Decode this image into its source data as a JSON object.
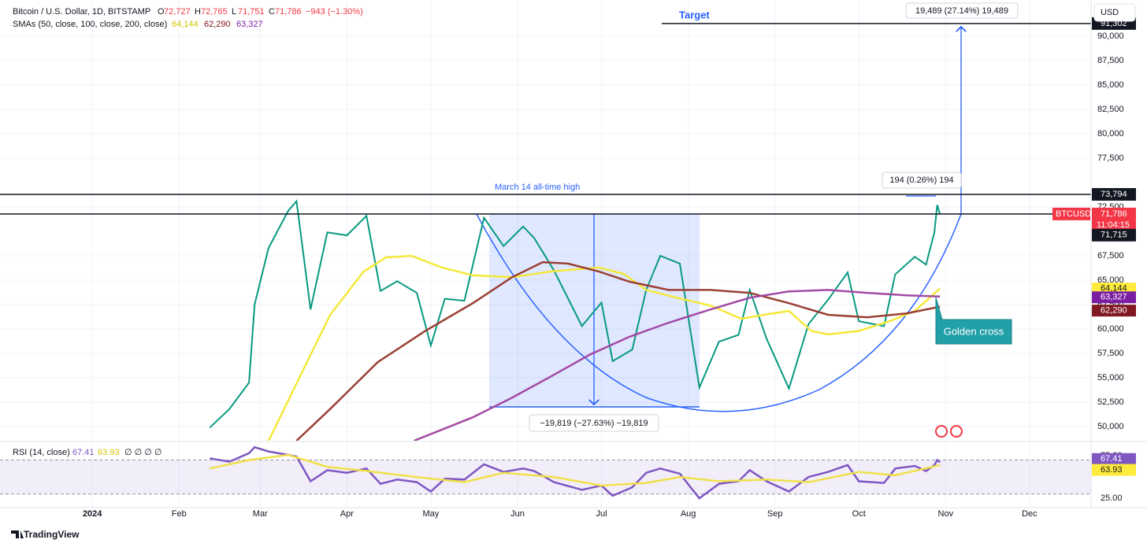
{
  "header": {
    "title": "Bitcoin / U.S. Dollar, 1D, BITSTAMP",
    "ohlc": [
      {
        "key": "O",
        "value": "72,727"
      },
      {
        "key": "H",
        "value": "72,765"
      },
      {
        "key": "L",
        "value": "71,751"
      },
      {
        "key": "C",
        "value": "71,786"
      }
    ],
    "change": "−943 (−1.30%)",
    "sma_title": "SMAs (50, close, 100, close, 200, close)",
    "sma_values": [
      "64,144",
      "62,290",
      "63,327"
    ],
    "currency": "USD",
    "logo": "TradingView"
  },
  "annotations": {
    "target": "Target",
    "target_measure": "19,489 (27.14%) 19,489",
    "ath": "March 14 all-time high",
    "small_measure": "194 (0.26%) 194",
    "drop_measure": "−19,819 (−27.63%) −19,819",
    "golden_cross": "Golden cross",
    "symbol": "BTCUSD",
    "countdown": "11:04:15"
  },
  "chart_data": [
    {
      "type": "line",
      "xlim": [
        -33,
        357
      ],
      "ylim": [
        48550,
        93710
      ],
      "yticks": [
        {
          "value": 50000,
          "label": "50,000"
        },
        {
          "value": 52500,
          "label": "52,500"
        },
        {
          "value": 55000,
          "label": "55,000"
        },
        {
          "value": 57500,
          "label": "57,500"
        },
        {
          "value": 60000,
          "label": "60,000"
        },
        {
          "value": 62500,
          "label": "62,500"
        },
        {
          "value": 65000,
          "label": "65,000"
        },
        {
          "value": 67500,
          "label": "67,500"
        },
        {
          "value": 72500,
          "label": "72,500"
        },
        {
          "value": 77500,
          "label": "77,500"
        },
        {
          "value": 80000,
          "label": "80,000"
        },
        {
          "value": 82500,
          "label": "82,500"
        },
        {
          "value": 85000,
          "label": "85,000"
        },
        {
          "value": 87500,
          "label": "87,500"
        },
        {
          "value": 90000,
          "label": "90,000"
        }
      ],
      "grid": true,
      "series": [
        {
          "name": "BTCUSD",
          "color": "#089981",
          "x": [
            42,
            49,
            56,
            58,
            63,
            70,
            73,
            78,
            84,
            91,
            98,
            103,
            109,
            116,
            121,
            126,
            133,
            140,
            147,
            154,
            158,
            165,
            175,
            182,
            186,
            193,
            198,
            203,
            210,
            217,
            224,
            231,
            235,
            241,
            249,
            256,
            263,
            270,
            274,
            283,
            287,
            294,
            298,
            301,
            302,
            303
          ],
          "values": [
            49900,
            51800,
            54500,
            62500,
            68300,
            72100,
            73100,
            62000,
            69900,
            69600,
            71600,
            63900,
            64900,
            63700,
            58300,
            63100,
            62900,
            71400,
            68500,
            70500,
            69300,
            66000,
            60300,
            62700,
            56700,
            57900,
            64000,
            67500,
            66700,
            54000,
            58700,
            59400,
            64000,
            59000,
            53900,
            60500,
            63000,
            65800,
            60800,
            60300,
            65600,
            67400,
            66600,
            69900,
            72700,
            71786
          ]
        },
        {
          "name": "SMA 50",
          "color": "#f5e83a",
          "x": [
            63,
            74,
            85,
            97,
            105,
            114,
            125,
            136,
            150,
            164,
            181,
            190,
            198,
            209,
            221,
            232,
            240,
            249,
            257,
            263,
            274,
            285,
            294,
            303
          ],
          "values": [
            48550,
            55000,
            61450,
            65900,
            67340,
            67500,
            66300,
            65500,
            65300,
            65900,
            66300,
            65650,
            64000,
            63200,
            62400,
            61050,
            61450,
            61850,
            59800,
            59450,
            59800,
            60800,
            61850,
            64144
          ]
        },
        {
          "name": "SMA 100",
          "color": "#9a4034",
          "x": [
            73,
            85,
            102,
            119,
            136,
            150,
            161,
            170,
            181,
            192,
            206,
            221,
            235,
            249,
            263,
            277,
            291,
            303
          ],
          "values": [
            48550,
            51800,
            56600,
            59800,
            62650,
            65300,
            66850,
            66700,
            65900,
            64850,
            64000,
            64000,
            63700,
            62650,
            61450,
            61200,
            61600,
            62290
          ]
        },
        {
          "name": "SMA 200",
          "color": "#a349a4",
          "x": [
            115,
            136,
            150,
            164,
            178,
            192,
            206,
            221,
            235,
            249,
            263,
            277,
            291,
            303
          ],
          "values": [
            48550,
            50950,
            52950,
            55150,
            57400,
            59200,
            60650,
            62000,
            63200,
            63850,
            64000,
            63700,
            63450,
            63327
          ]
        }
      ],
      "levels": [
        {
          "value": 91302,
          "label": "91,302"
        },
        {
          "value": 73794,
          "label": "73,794"
        },
        {
          "value": 71786,
          "label": "71,786"
        },
        {
          "value": 71715,
          "label": "71,715"
        }
      ],
      "axis_labels": [
        {
          "value": 64144,
          "label": "64,144",
          "color": "#ffeb3b"
        },
        {
          "value": 63327,
          "label": "63,327",
          "color": "#7b1fa2"
        },
        {
          "value": 62290,
          "label": "62,290",
          "color": "#801922"
        }
      ]
    },
    {
      "type": "line",
      "title": "RSI (14, close)",
      "xlim": [
        -33,
        357
      ],
      "ylim": [
        14,
        88
      ],
      "yticks": [
        {
          "value": 75,
          "label": "75.00"
        },
        {
          "value": 25,
          "label": "25.00"
        }
      ],
      "band": [
        30,
        70
      ],
      "xticks": [
        {
          "value": 0,
          "label": "2024"
        },
        {
          "value": 31,
          "label": "Feb"
        },
        {
          "value": 60,
          "label": "Mar"
        },
        {
          "value": 91,
          "label": "Apr"
        },
        {
          "value": 121,
          "label": "May"
        },
        {
          "value": 152,
          "label": "Jun"
        },
        {
          "value": 182,
          "label": "Jul"
        },
        {
          "value": 213,
          "label": "Aug"
        },
        {
          "value": 244,
          "label": "Sep"
        },
        {
          "value": 274,
          "label": "Oct"
        },
        {
          "value": 305,
          "label": "Nov"
        },
        {
          "value": 335,
          "label": "Dec"
        }
      ],
      "series": [
        {
          "name": "RSI",
          "color": "#7e57c2",
          "value_label": "67.41",
          "x": [
            42,
            49,
            56,
            58,
            63,
            70,
            73,
            78,
            84,
            91,
            98,
            103,
            109,
            116,
            121,
            126,
            133,
            140,
            147,
            154,
            158,
            165,
            175,
            182,
            186,
            193,
            198,
            203,
            210,
            217,
            224,
            231,
            235,
            241,
            249,
            256,
            263,
            270,
            274,
            283,
            287,
            294,
            298,
            301,
            302,
            303
          ],
          "values": [
            72,
            68,
            78,
            85,
            80,
            76,
            74,
            45,
            58,
            55,
            60,
            42,
            47,
            44,
            33,
            48,
            47,
            65,
            56,
            60,
            57,
            44,
            35,
            40,
            28,
            38,
            55,
            60,
            54,
            25,
            42,
            45,
            58,
            45,
            33,
            50,
            56,
            64,
            45,
            43,
            60,
            63,
            57,
            64,
            70,
            67.41
          ]
        },
        {
          "name": "RSI MA",
          "color": "#f0e04a",
          "value_label": "63.93",
          "x": [
            42,
            56,
            70,
            84,
            98,
            116,
            133,
            147,
            165,
            182,
            198,
            210,
            224,
            241,
            256,
            274,
            287,
            303
          ],
          "values": [
            60,
            70,
            76,
            62,
            57,
            50,
            44,
            55,
            50,
            40,
            43,
            50,
            45,
            47,
            44,
            56,
            52,
            63.93
          ]
        }
      ],
      "legend_extra": "∅ ∅ ∅ ∅"
    }
  ]
}
